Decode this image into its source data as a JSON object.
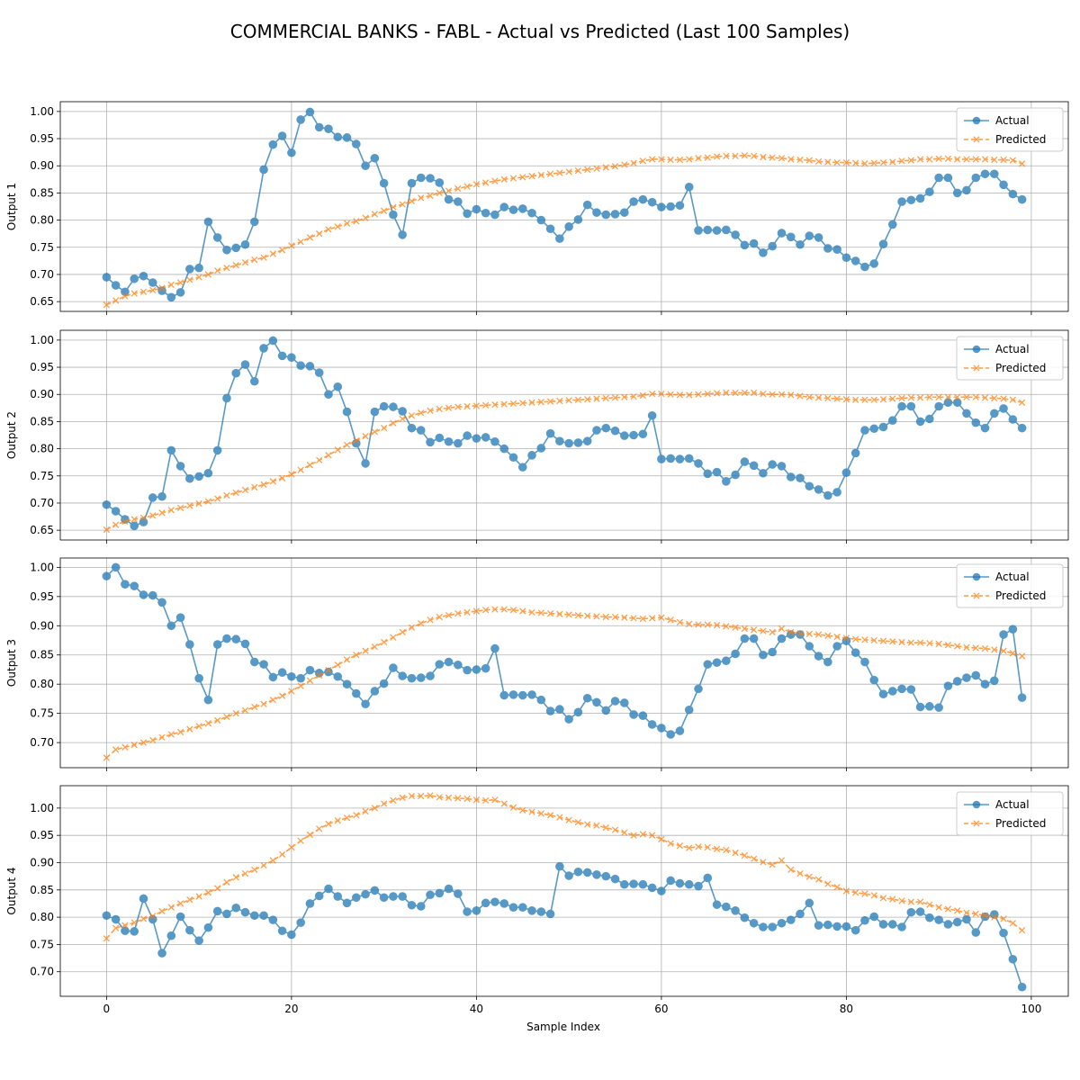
{
  "chart_data": {
    "type": "line",
    "title": "COMMERCIAL BANKS - FABL - Actual vs Predicted (Last 100 Samples)",
    "xlabel": "Sample Index",
    "xlim": [
      -5,
      104
    ],
    "xticks": [
      0,
      20,
      40,
      60,
      80,
      100
    ],
    "grid": true,
    "legend_position": "top-right",
    "colors": {
      "actual": "#1f77b4",
      "predicted": "#ff7f0e"
    },
    "markers": {
      "actual": "circle",
      "predicted": "x"
    },
    "panels": [
      {
        "ylabel": "Output 1",
        "ylim": [
          0.632,
          1.018
        ],
        "yticks": [
          0.65,
          0.7,
          0.75,
          0.8,
          0.85,
          0.9,
          0.95,
          1.0
        ],
        "series": [
          {
            "name": "Actual",
            "values": [
              0.695,
              0.68,
              0.668,
              0.692,
              0.697,
              0.685,
              0.67,
              0.658,
              0.667,
              0.71,
              0.712,
              0.797,
              0.768,
              0.745,
              0.749,
              0.755,
              0.797,
              0.893,
              0.939,
              0.955,
              0.924,
              0.985,
              0.999,
              0.971,
              0.968,
              0.953,
              0.952,
              0.94,
              0.9,
              0.914,
              0.868,
              0.81,
              0.773,
              0.868,
              0.878,
              0.877,
              0.869,
              0.838,
              0.834,
              0.812,
              0.82,
              0.813,
              0.81,
              0.824,
              0.819,
              0.821,
              0.813,
              0.8,
              0.784,
              0.766,
              0.788,
              0.801,
              0.828,
              0.814,
              0.81,
              0.811,
              0.814,
              0.834,
              0.838,
              0.833,
              0.824,
              0.825,
              0.827,
              0.861,
              0.781,
              0.782,
              0.781,
              0.782,
              0.773,
              0.754,
              0.757,
              0.74,
              0.752,
              0.776,
              0.769,
              0.755,
              0.771,
              0.768,
              0.748,
              0.746,
              0.731,
              0.725,
              0.714,
              0.72,
              0.756,
              0.792,
              0.834,
              0.837,
              0.84,
              0.852,
              0.878,
              0.878,
              0.85,
              0.855,
              0.878,
              0.885,
              0.885,
              0.865,
              0.848,
              0.838
            ]
          },
          {
            "name": "Predicted",
            "values": [
              0.644,
              0.652,
              0.66,
              0.665,
              0.668,
              0.671,
              0.675,
              0.681,
              0.685,
              0.69,
              0.695,
              0.7,
              0.707,
              0.712,
              0.717,
              0.722,
              0.727,
              0.731,
              0.738,
              0.745,
              0.753,
              0.76,
              0.768,
              0.775,
              0.783,
              0.788,
              0.794,
              0.798,
              0.804,
              0.811,
              0.817,
              0.824,
              0.829,
              0.835,
              0.841,
              0.845,
              0.85,
              0.854,
              0.858,
              0.862,
              0.866,
              0.869,
              0.872,
              0.875,
              0.877,
              0.879,
              0.881,
              0.883,
              0.885,
              0.887,
              0.889,
              0.891,
              0.893,
              0.895,
              0.897,
              0.899,
              0.902,
              0.905,
              0.909,
              0.912,
              0.912,
              0.911,
              0.911,
              0.912,
              0.914,
              0.915,
              0.917,
              0.918,
              0.918,
              0.919,
              0.918,
              0.916,
              0.915,
              0.914,
              0.912,
              0.911,
              0.91,
              0.908,
              0.907,
              0.906,
              0.906,
              0.905,
              0.904,
              0.905,
              0.906,
              0.907,
              0.909,
              0.91,
              0.912,
              0.912,
              0.913,
              0.913,
              0.912,
              0.912,
              0.912,
              0.912,
              0.911,
              0.911,
              0.91,
              0.904
            ]
          }
        ]
      },
      {
        "ylabel": "Output 2",
        "ylim": [
          0.632,
          1.018
        ],
        "yticks": [
          0.65,
          0.7,
          0.75,
          0.8,
          0.85,
          0.9,
          0.95,
          1.0
        ],
        "series": [
          {
            "name": "Actual",
            "values": [
              0.697,
              0.685,
              0.67,
              0.658,
              0.665,
              0.71,
              0.712,
              0.797,
              0.768,
              0.745,
              0.749,
              0.755,
              0.797,
              0.893,
              0.939,
              0.955,
              0.924,
              0.985,
              0.999,
              0.971,
              0.968,
              0.953,
              0.952,
              0.94,
              0.9,
              0.914,
              0.868,
              0.81,
              0.773,
              0.868,
              0.878,
              0.877,
              0.869,
              0.838,
              0.834,
              0.812,
              0.82,
              0.813,
              0.81,
              0.824,
              0.819,
              0.821,
              0.813,
              0.8,
              0.784,
              0.766,
              0.788,
              0.801,
              0.828,
              0.814,
              0.81,
              0.811,
              0.814,
              0.834,
              0.838,
              0.833,
              0.824,
              0.825,
              0.827,
              0.861,
              0.781,
              0.782,
              0.781,
              0.782,
              0.773,
              0.754,
              0.757,
              0.74,
              0.752,
              0.776,
              0.769,
              0.755,
              0.771,
              0.768,
              0.748,
              0.746,
              0.731,
              0.725,
              0.714,
              0.72,
              0.756,
              0.792,
              0.834,
              0.837,
              0.84,
              0.852,
              0.878,
              0.878,
              0.85,
              0.855,
              0.878,
              0.885,
              0.885,
              0.865,
              0.848,
              0.838,
              0.865,
              0.874,
              0.854,
              0.838
            ]
          },
          {
            "name": "Predicted",
            "values": [
              0.651,
              0.66,
              0.666,
              0.67,
              0.673,
              0.677,
              0.682,
              0.687,
              0.691,
              0.695,
              0.699,
              0.703,
              0.708,
              0.714,
              0.719,
              0.724,
              0.729,
              0.734,
              0.74,
              0.746,
              0.753,
              0.761,
              0.77,
              0.779,
              0.788,
              0.798,
              0.807,
              0.815,
              0.823,
              0.831,
              0.838,
              0.847,
              0.855,
              0.861,
              0.866,
              0.87,
              0.873,
              0.875,
              0.877,
              0.878,
              0.879,
              0.88,
              0.881,
              0.882,
              0.883,
              0.884,
              0.885,
              0.886,
              0.887,
              0.888,
              0.889,
              0.89,
              0.891,
              0.892,
              0.893,
              0.894,
              0.895,
              0.896,
              0.898,
              0.901,
              0.901,
              0.9,
              0.899,
              0.899,
              0.9,
              0.901,
              0.902,
              0.903,
              0.903,
              0.903,
              0.903,
              0.901,
              0.9,
              0.9,
              0.899,
              0.897,
              0.895,
              0.894,
              0.893,
              0.892,
              0.891,
              0.89,
              0.89,
              0.89,
              0.891,
              0.892,
              0.893,
              0.894,
              0.894,
              0.895,
              0.895,
              0.895,
              0.895,
              0.895,
              0.895,
              0.894,
              0.893,
              0.892,
              0.89,
              0.885
            ]
          }
        ]
      },
      {
        "ylabel": "Output 3",
        "ylim": [
          0.657,
          1.016
        ],
        "yticks": [
          0.7,
          0.75,
          0.8,
          0.85,
          0.9,
          0.95,
          1.0
        ],
        "series": [
          {
            "name": "Actual",
            "values": [
              0.985,
              1.0,
              0.971,
              0.968,
              0.953,
              0.952,
              0.94,
              0.9,
              0.914,
              0.868,
              0.81,
              0.773,
              0.868,
              0.878,
              0.877,
              0.869,
              0.838,
              0.834,
              0.812,
              0.82,
              0.813,
              0.81,
              0.824,
              0.819,
              0.821,
              0.813,
              0.8,
              0.784,
              0.766,
              0.788,
              0.801,
              0.828,
              0.814,
              0.81,
              0.811,
              0.814,
              0.834,
              0.838,
              0.833,
              0.824,
              0.825,
              0.827,
              0.861,
              0.781,
              0.782,
              0.781,
              0.782,
              0.773,
              0.754,
              0.757,
              0.74,
              0.752,
              0.776,
              0.769,
              0.755,
              0.771,
              0.768,
              0.748,
              0.746,
              0.731,
              0.725,
              0.714,
              0.72,
              0.756,
              0.792,
              0.834,
              0.837,
              0.84,
              0.852,
              0.878,
              0.878,
              0.85,
              0.855,
              0.878,
              0.885,
              0.885,
              0.865,
              0.848,
              0.838,
              0.865,
              0.874,
              0.854,
              0.838,
              0.807,
              0.783,
              0.788,
              0.792,
              0.791,
              0.761,
              0.762,
              0.76,
              0.797,
              0.805,
              0.811,
              0.815,
              0.8,
              0.806,
              0.885,
              0.894,
              0.777
            ]
          },
          {
            "name": "Predicted",
            "values": [
              0.674,
              0.688,
              0.692,
              0.696,
              0.7,
              0.704,
              0.709,
              0.714,
              0.718,
              0.723,
              0.728,
              0.733,
              0.738,
              0.744,
              0.75,
              0.755,
              0.761,
              0.766,
              0.773,
              0.78,
              0.788,
              0.797,
              0.806,
              0.815,
              0.824,
              0.833,
              0.842,
              0.85,
              0.857,
              0.864,
              0.872,
              0.88,
              0.889,
              0.897,
              0.904,
              0.91,
              0.915,
              0.918,
              0.921,
              0.923,
              0.925,
              0.927,
              0.928,
              0.928,
              0.927,
              0.925,
              0.923,
              0.922,
              0.921,
              0.92,
              0.919,
              0.918,
              0.917,
              0.916,
              0.915,
              0.915,
              0.914,
              0.913,
              0.912,
              0.913,
              0.914,
              0.91,
              0.906,
              0.903,
              0.902,
              0.902,
              0.901,
              0.899,
              0.897,
              0.895,
              0.893,
              0.891,
              0.889,
              0.895,
              0.889,
              0.887,
              0.886,
              0.885,
              0.883,
              0.881,
              0.879,
              0.877,
              0.876,
              0.875,
              0.874,
              0.873,
              0.872,
              0.871,
              0.871,
              0.87,
              0.869,
              0.867,
              0.865,
              0.863,
              0.862,
              0.861,
              0.859,
              0.857,
              0.853,
              0.848
            ]
          }
        ]
      },
      {
        "ylabel": "Output 4",
        "ylim": [
          0.655,
          1.041
        ],
        "yticks": [
          0.7,
          0.75,
          0.8,
          0.85,
          0.9,
          0.95,
          1.0
        ],
        "series": [
          {
            "name": "Actual",
            "values": [
              0.803,
              0.796,
              0.775,
              0.774,
              0.834,
              0.796,
              0.734,
              0.766,
              0.801,
              0.776,
              0.757,
              0.781,
              0.811,
              0.806,
              0.817,
              0.809,
              0.803,
              0.803,
              0.795,
              0.775,
              0.768,
              0.79,
              0.825,
              0.839,
              0.852,
              0.838,
              0.826,
              0.836,
              0.842,
              0.849,
              0.836,
              0.838,
              0.838,
              0.822,
              0.82,
              0.841,
              0.844,
              0.852,
              0.843,
              0.81,
              0.812,
              0.826,
              0.828,
              0.825,
              0.818,
              0.818,
              0.812,
              0.81,
              0.806,
              0.893,
              0.876,
              0.883,
              0.882,
              0.878,
              0.875,
              0.87,
              0.86,
              0.861,
              0.86,
              0.854,
              0.848,
              0.867,
              0.862,
              0.86,
              0.857,
              0.872,
              0.823,
              0.819,
              0.812,
              0.799,
              0.789,
              0.782,
              0.782,
              0.789,
              0.795,
              0.806,
              0.826,
              0.785,
              0.786,
              0.783,
              0.783,
              0.776,
              0.794,
              0.801,
              0.787,
              0.787,
              0.782,
              0.809,
              0.81,
              0.799,
              0.795,
              0.787,
              0.791,
              0.796,
              0.772,
              0.801,
              0.805,
              0.771,
              0.723,
              0.672
            ]
          },
          {
            "name": "Predicted",
            "values": [
              0.761,
              0.78,
              0.785,
              0.79,
              0.797,
              0.802,
              0.811,
              0.818,
              0.825,
              0.832,
              0.838,
              0.845,
              0.853,
              0.864,
              0.873,
              0.88,
              0.887,
              0.895,
              0.904,
              0.915,
              0.928,
              0.94,
              0.951,
              0.962,
              0.971,
              0.977,
              0.982,
              0.987,
              0.994,
              1.0,
              1.008,
              1.014,
              1.019,
              1.022,
              1.022,
              1.023,
              1.02,
              1.019,
              1.018,
              1.017,
              1.015,
              1.014,
              1.015,
              1.008,
              1.001,
              0.996,
              0.993,
              0.99,
              0.987,
              0.983,
              0.978,
              0.974,
              0.97,
              0.968,
              0.964,
              0.96,
              0.955,
              0.95,
              0.952,
              0.95,
              0.943,
              0.935,
              0.931,
              0.927,
              0.929,
              0.928,
              0.925,
              0.923,
              0.918,
              0.913,
              0.907,
              0.901,
              0.896,
              0.904,
              0.887,
              0.88,
              0.874,
              0.869,
              0.861,
              0.855,
              0.848,
              0.845,
              0.843,
              0.84,
              0.835,
              0.833,
              0.83,
              0.828,
              0.828,
              0.823,
              0.818,
              0.815,
              0.812,
              0.808,
              0.806,
              0.803,
              0.8,
              0.797,
              0.789,
              0.776
            ]
          }
        ]
      }
    ]
  }
}
